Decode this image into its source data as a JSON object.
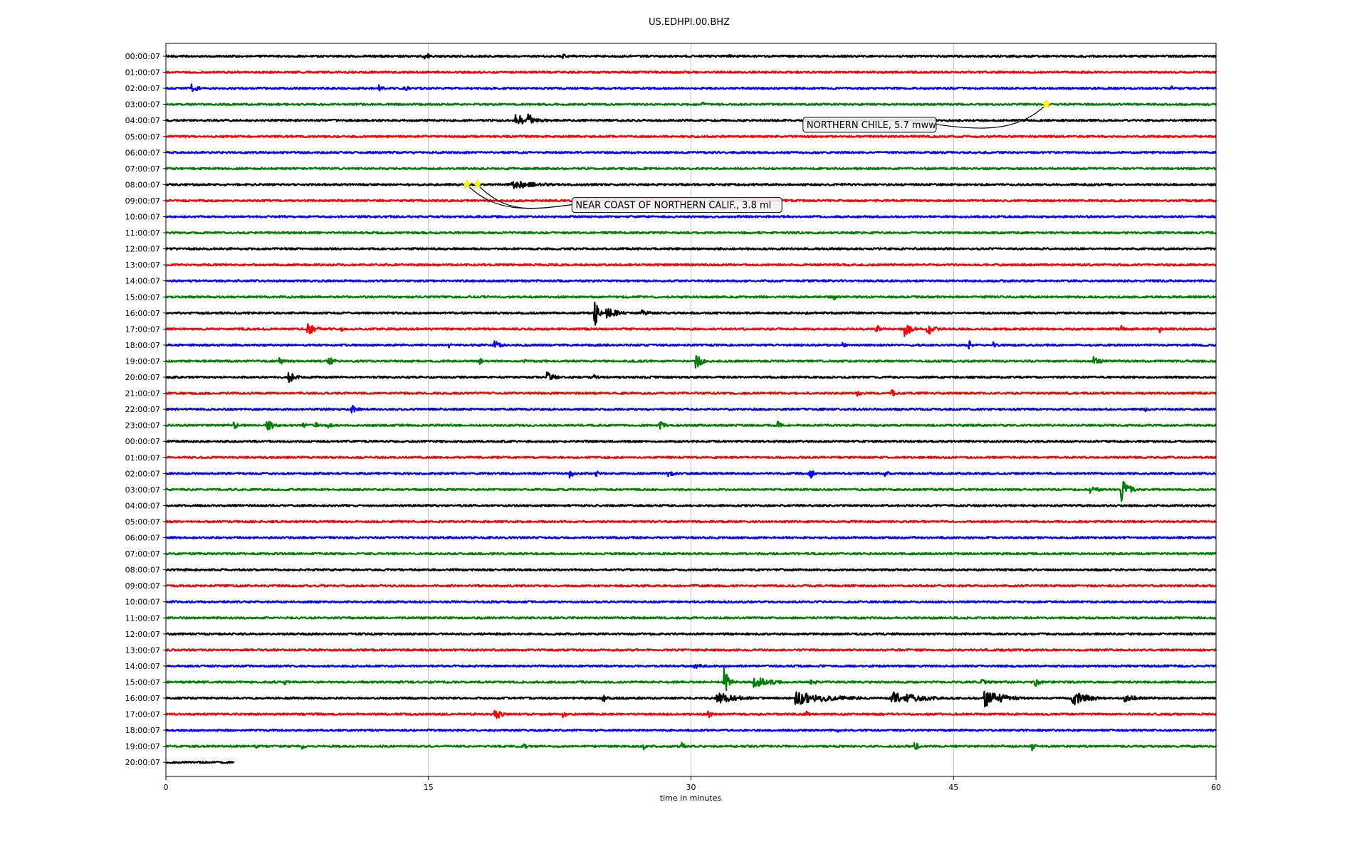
{
  "chart_data": {
    "type": "line",
    "title": "US.EDHPI.00.BHZ",
    "xlabel": "time in minutes",
    "ylabel": "",
    "xlim": [
      0,
      60
    ],
    "xticks": [
      0,
      15,
      30,
      45,
      60
    ],
    "grid_vertical": true,
    "row_colors": [
      "#000000",
      "#ff0000",
      "#0000ff",
      "#008000"
    ],
    "rows": [
      {
        "label": "00:00:07",
        "events": [
          {
            "t": 14.8,
            "amp": 8,
            "dur": 0.4
          },
          {
            "t": 22.7,
            "amp": 4,
            "dur": 0.5
          },
          {
            "t": 32.2,
            "amp": 3,
            "dur": 0.4
          },
          {
            "t": 48.1,
            "amp": 3,
            "dur": 0.3
          }
        ]
      },
      {
        "label": "01:00:07",
        "events": []
      },
      {
        "label": "02:00:07",
        "events": [
          {
            "t": 1.5,
            "amp": 6,
            "dur": 0.8
          },
          {
            "t": 12.2,
            "amp": 5,
            "dur": 0.6
          },
          {
            "t": 13.6,
            "amp": 6,
            "dur": 0.5
          },
          {
            "t": 57.5,
            "amp": 3,
            "dur": 0.3
          }
        ]
      },
      {
        "label": "03:00:07",
        "events": [
          {
            "t": 30.7,
            "amp": 3,
            "dur": 0.3
          }
        ]
      },
      {
        "label": "04:00:07",
        "events": [
          {
            "t": 20.0,
            "amp": 8,
            "dur": 2.5
          },
          {
            "t": 20.7,
            "amp": 18,
            "dur": 0.3
          }
        ]
      },
      {
        "label": "05:00:07",
        "events": []
      },
      {
        "label": "06:00:07",
        "events": []
      },
      {
        "label": "07:00:07",
        "events": []
      },
      {
        "label": "08:00:07",
        "events": [
          {
            "t": 19.8,
            "amp": 7,
            "dur": 3.2
          }
        ]
      },
      {
        "label": "09:00:07",
        "events": []
      },
      {
        "label": "10:00:07",
        "events": []
      },
      {
        "label": "11:00:07",
        "events": []
      },
      {
        "label": "12:00:07",
        "events": []
      },
      {
        "label": "13:00:07",
        "events": []
      },
      {
        "label": "14:00:07",
        "events": []
      },
      {
        "label": "15:00:07",
        "events": [
          {
            "t": 38.2,
            "amp": 4,
            "dur": 0.3
          },
          {
            "t": 46.8,
            "amp": 4,
            "dur": 0.3
          }
        ]
      },
      {
        "label": "16:00:07",
        "events": [
          {
            "t": 24.5,
            "amp": 22,
            "dur": 0.4
          },
          {
            "t": 25.2,
            "amp": 8,
            "dur": 1.5
          },
          {
            "t": 27.2,
            "amp": 5,
            "dur": 1.2
          },
          {
            "t": 36.5,
            "amp": 3,
            "dur": 0.4
          }
        ]
      },
      {
        "label": "17:00:07",
        "events": [
          {
            "t": 8.1,
            "amp": 9,
            "dur": 1.0
          },
          {
            "t": 10.0,
            "amp": 4,
            "dur": 0.4
          },
          {
            "t": 40.6,
            "amp": 7,
            "dur": 0.4
          },
          {
            "t": 42.2,
            "amp": 12,
            "dur": 0.8
          },
          {
            "t": 43.5,
            "amp": 10,
            "dur": 0.8
          },
          {
            "t": 54.6,
            "amp": 6,
            "dur": 0.4
          },
          {
            "t": 56.8,
            "amp": 5,
            "dur": 0.4
          }
        ]
      },
      {
        "label": "18:00:07",
        "events": [
          {
            "t": 16.2,
            "amp": 4,
            "dur": 0.4
          },
          {
            "t": 18.8,
            "amp": 6,
            "dur": 0.8
          },
          {
            "t": 38.7,
            "amp": 4,
            "dur": 0.4
          },
          {
            "t": 45.9,
            "amp": 7,
            "dur": 0.4
          },
          {
            "t": 47.3,
            "amp": 5,
            "dur": 0.4
          }
        ]
      },
      {
        "label": "19:00:07",
        "events": [
          {
            "t": 6.5,
            "amp": 6,
            "dur": 0.5
          },
          {
            "t": 9.3,
            "amp": 9,
            "dur": 0.6
          },
          {
            "t": 17.9,
            "amp": 6,
            "dur": 0.4
          },
          {
            "t": 20.5,
            "amp": 4,
            "dur": 0.4
          },
          {
            "t": 30.3,
            "amp": 10,
            "dur": 0.8
          },
          {
            "t": 53.0,
            "amp": 8,
            "dur": 0.8
          }
        ]
      },
      {
        "label": "20:00:07",
        "events": [
          {
            "t": 7.0,
            "amp": 10,
            "dur": 0.8
          },
          {
            "t": 21.8,
            "amp": 9,
            "dur": 0.8
          },
          {
            "t": 24.5,
            "amp": 4,
            "dur": 0.4
          }
        ]
      },
      {
        "label": "21:00:07",
        "events": [
          {
            "t": 39.5,
            "amp": 5,
            "dur": 0.6
          },
          {
            "t": 41.5,
            "amp": 6,
            "dur": 0.6
          }
        ]
      },
      {
        "label": "22:00:07",
        "events": [
          {
            "t": 10.6,
            "amp": 7,
            "dur": 0.8
          },
          {
            "t": 56.0,
            "amp": 4,
            "dur": 0.4
          }
        ]
      },
      {
        "label": "23:00:07",
        "events": [
          {
            "t": 3.9,
            "amp": 6,
            "dur": 0.4
          },
          {
            "t": 5.8,
            "amp": 9,
            "dur": 0.8
          },
          {
            "t": 7.8,
            "amp": 6,
            "dur": 0.4
          },
          {
            "t": 8.6,
            "amp": 6,
            "dur": 0.4
          },
          {
            "t": 9.3,
            "amp": 5,
            "dur": 0.4
          },
          {
            "t": 28.2,
            "amp": 6,
            "dur": 0.8
          },
          {
            "t": 34.9,
            "amp": 9,
            "dur": 0.4
          }
        ]
      },
      {
        "label": "00:00:07",
        "events": []
      },
      {
        "label": "01:00:07",
        "events": []
      },
      {
        "label": "02:00:07",
        "events": [
          {
            "t": 23.1,
            "amp": 7,
            "dur": 0.4
          },
          {
            "t": 24.6,
            "amp": 4,
            "dur": 0.4
          },
          {
            "t": 28.7,
            "amp": 6,
            "dur": 0.6
          },
          {
            "t": 36.8,
            "amp": 9,
            "dur": 0.4
          },
          {
            "t": 41.1,
            "amp": 4,
            "dur": 0.6
          }
        ]
      },
      {
        "label": "03:00:07",
        "events": [
          {
            "t": 52.8,
            "amp": 5,
            "dur": 1.6
          },
          {
            "t": 54.6,
            "amp": 18,
            "dur": 0.8
          }
        ]
      },
      {
        "label": "04:00:07",
        "events": []
      },
      {
        "label": "05:00:07",
        "events": []
      },
      {
        "label": "06:00:07",
        "events": []
      },
      {
        "label": "07:00:07",
        "events": []
      },
      {
        "label": "08:00:07",
        "events": []
      },
      {
        "label": "09:00:07",
        "events": []
      },
      {
        "label": "10:00:07",
        "events": []
      },
      {
        "label": "11:00:07",
        "events": []
      },
      {
        "label": "12:00:07",
        "events": []
      },
      {
        "label": "13:00:07",
        "events": []
      },
      {
        "label": "14:00:07",
        "events": [
          {
            "t": 30.2,
            "amp": 6,
            "dur": 0.6
          }
        ]
      },
      {
        "label": "15:00:07",
        "events": [
          {
            "t": 6.8,
            "amp": 5,
            "dur": 0.4
          },
          {
            "t": 31.9,
            "amp": 20,
            "dur": 0.5
          },
          {
            "t": 33.6,
            "amp": 8,
            "dur": 2.5
          },
          {
            "t": 36.8,
            "amp": 5,
            "dur": 0.8
          },
          {
            "t": 46.6,
            "amp": 4,
            "dur": 1.2
          },
          {
            "t": 49.7,
            "amp": 6,
            "dur": 0.6
          }
        ]
      },
      {
        "label": "16:00:07",
        "events": [
          {
            "t": 25.0,
            "amp": 6,
            "dur": 0.4
          },
          {
            "t": 31.5,
            "amp": 9,
            "dur": 2.5
          },
          {
            "t": 36.0,
            "amp": 9,
            "dur": 5.0
          },
          {
            "t": 41.5,
            "amp": 9,
            "dur": 4.0
          },
          {
            "t": 46.8,
            "amp": 12,
            "dur": 2.5
          },
          {
            "t": 51.8,
            "amp": 11,
            "dur": 2.0
          },
          {
            "t": 54.8,
            "amp": 5,
            "dur": 2.0
          }
        ]
      },
      {
        "label": "17:00:07",
        "events": [
          {
            "t": 18.8,
            "amp": 9,
            "dur": 0.8
          },
          {
            "t": 22.7,
            "amp": 7,
            "dur": 0.4
          },
          {
            "t": 31.0,
            "amp": 6,
            "dur": 0.4
          },
          {
            "t": 36.6,
            "amp": 6,
            "dur": 0.4
          },
          {
            "t": 45.0,
            "amp": 3,
            "dur": 0.4
          }
        ]
      },
      {
        "label": "18:00:07",
        "events": [
          {
            "t": 38.4,
            "amp": 3,
            "dur": 0.4
          }
        ]
      },
      {
        "label": "19:00:07",
        "events": [
          {
            "t": 5.2,
            "amp": 3,
            "dur": 0.4
          },
          {
            "t": 7.8,
            "amp": 4,
            "dur": 0.4
          },
          {
            "t": 20.5,
            "amp": 4,
            "dur": 0.4
          },
          {
            "t": 27.3,
            "amp": 5,
            "dur": 0.4
          },
          {
            "t": 29.5,
            "amp": 6,
            "dur": 0.4
          },
          {
            "t": 42.8,
            "amp": 7,
            "dur": 0.4
          },
          {
            "t": 49.5,
            "amp": 6,
            "dur": 0.4
          }
        ]
      },
      {
        "label": "20:00:07",
        "end_minute": 3.9,
        "events": []
      }
    ],
    "annotations": [
      {
        "text": "NORTHERN CHILE, 5.7 mww",
        "star_row": 3,
        "star_t": [
          50.3
        ],
        "box_t": 36.4,
        "box_row": 4.25
      },
      {
        "text": "NEAR COAST OF NORTHERN CALIF., 3.8 ml",
        "star_row": 8,
        "star_t": [
          17.2,
          17.8
        ],
        "box_t": 23.2,
        "box_row": 9.25
      }
    ]
  }
}
